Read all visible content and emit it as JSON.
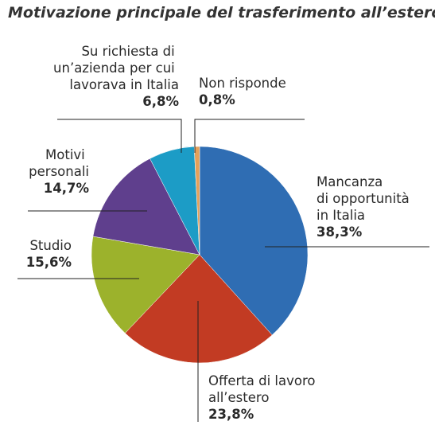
{
  "chart_data": {
    "type": "pie",
    "title": "Motivazione principale del trasferimento all’estero",
    "categories": [
      "Mancanza di opportunità in Italia",
      "Offerta di lavoro all’estero",
      "Studio",
      "Motivi personali",
      "Su richiesta di un’azienda per cui lavorava in Italia",
      "Non risponde"
    ],
    "values": [
      38.3,
      23.8,
      15.6,
      14.7,
      6.8,
      0.8
    ],
    "value_labels": [
      "38,3%",
      "23,8%",
      "15,6%",
      "14,7%",
      "6,8%",
      "0,8%"
    ],
    "colors": [
      "#2f6db3",
      "#c23b23",
      "#9cb22c",
      "#5f3f8d",
      "#1c9cc6",
      "#e3a05a"
    ]
  }
}
